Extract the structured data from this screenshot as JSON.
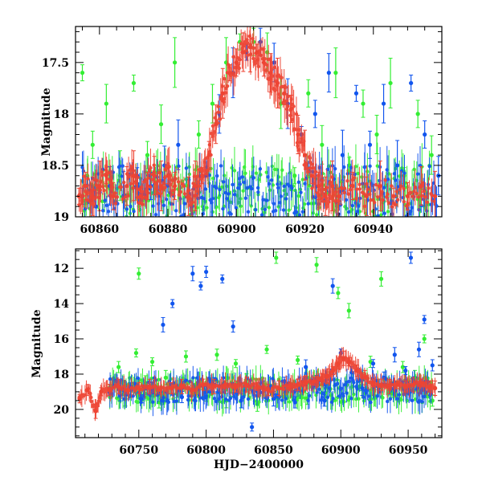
{
  "chart_data": [
    {
      "type": "scatter",
      "panel": "top",
      "title": "",
      "xlabel": "",
      "ylabel": "Magnitude",
      "xlim": [
        60853,
        60960
      ],
      "ylim": [
        19,
        17.15
      ],
      "y_inverted": true,
      "xticks": [
        60860,
        60880,
        60900,
        60920,
        60940
      ],
      "xtick_labels": [
        "60860",
        "60880",
        "60900",
        "60920",
        "60940"
      ],
      "yticks": [
        17.5,
        18,
        18.5,
        19
      ],
      "ytick_labels": [
        "17.5",
        "18",
        "18.5",
        "19"
      ],
      "series": [
        {
          "name": "green",
          "color": "#33ee33",
          "x": [
            60855,
            60858,
            60862,
            60866,
            60870,
            60874,
            60878,
            60882,
            60886,
            60889,
            60893,
            60897,
            60901,
            60905,
            60909,
            60913,
            60917,
            60921,
            60925,
            60929,
            60933,
            60937,
            60941,
            60945,
            60949,
            60953,
            60957
          ],
          "y": [
            17.6,
            18.3,
            17.9,
            18.6,
            17.7,
            18.4,
            18.1,
            17.5,
            18.7,
            18.2,
            17.9,
            17.5,
            17.3,
            17.3,
            17.4,
            17.9,
            18.6,
            17.8,
            18.3,
            17.6,
            18.5,
            17.9,
            18.2,
            17.7,
            18.6,
            18.0,
            18.4
          ]
        },
        {
          "name": "blue",
          "color": "#1155ee",
          "x": [
            60855,
            60859,
            60863,
            60867,
            60871,
            60875,
            60879,
            60883,
            60887,
            60891,
            60895,
            60899,
            60903,
            60907,
            60911,
            60915,
            60919,
            60923,
            60927,
            60931,
            60935,
            60939,
            60943,
            60947,
            60951,
            60955,
            60959
          ],
          "y": [
            18.8,
            18.9,
            18.7,
            18.8,
            18.6,
            18.7,
            18.5,
            18.3,
            18.9,
            18.6,
            18.0,
            17.6,
            17.4,
            17.3,
            17.5,
            17.9,
            18.2,
            18.0,
            17.6,
            18.4,
            17.8,
            18.3,
            17.9,
            18.5,
            17.7,
            18.2,
            18.6
          ]
        },
        {
          "name": "red",
          "color": "#ee4433",
          "x": [
            60854,
            60856,
            60858,
            60860,
            60862,
            60864,
            60868,
            60870,
            60872,
            60874,
            60876,
            60878,
            60880,
            60882,
            60886,
            60888,
            60890,
            60892,
            60894,
            60896,
            60898,
            60900,
            60902,
            60904,
            60906,
            60908,
            60910,
            60912,
            60914,
            60916,
            60918,
            60920,
            60922,
            60924,
            60926,
            60928,
            60930,
            60934,
            60938,
            60942,
            60946,
            60950,
            60954,
            60958
          ],
          "y": [
            18.8,
            18.7,
            18.8,
            18.7,
            18.6,
            18.8,
            18.7,
            18.6,
            18.8,
            18.7,
            18.6,
            18.7,
            18.6,
            18.7,
            18.8,
            18.7,
            18.6,
            18.4,
            18.1,
            17.8,
            17.6,
            17.5,
            17.4,
            17.35,
            17.4,
            17.5,
            17.6,
            17.7,
            17.8,
            17.95,
            18.2,
            18.4,
            18.6,
            18.7,
            18.8,
            18.7,
            18.8,
            18.7,
            18.8,
            18.7,
            18.8,
            18.8,
            18.7,
            18.8
          ]
        }
      ]
    },
    {
      "type": "scatter",
      "panel": "bottom",
      "title": "",
      "xlabel": "HJD−2400000",
      "ylabel": "Magnitude",
      "xlim": [
        60703,
        60975
      ],
      "ylim": [
        21.6,
        10.9
      ],
      "y_inverted": true,
      "xticks": [
        60750,
        60800,
        60850,
        60900,
        60950
      ],
      "xtick_labels": [
        "60750",
        "60800",
        "60850",
        "60900",
        "60950"
      ],
      "yticks": [
        12,
        14,
        16,
        18,
        20
      ],
      "ytick_labels": [
        "12",
        "14",
        "16",
        "18",
        "20"
      ],
      "series": [
        {
          "name": "green",
          "color": "#33ee33",
          "x": [
            60728,
            60735,
            60740,
            60748,
            60750,
            60755,
            60760,
            60765,
            60770,
            60778,
            60785,
            60792,
            60800,
            60808,
            60815,
            60822,
            60830,
            60838,
            60845,
            60852,
            60860,
            60868,
            60875,
            60882,
            60890,
            60898,
            60906,
            60914,
            60922,
            60930,
            60938,
            60946,
            60955,
            60962,
            60968
          ],
          "y": [
            18.8,
            17.6,
            19.4,
            16.8,
            12.3,
            18.5,
            17.3,
            19.6,
            18.2,
            19.1,
            17.0,
            18.6,
            19.3,
            16.9,
            19.5,
            17.4,
            18.3,
            19.7,
            16.6,
            11.4,
            18.9,
            17.2,
            19.4,
            11.8,
            18.1,
            13.4,
            14.4,
            18.7,
            17.3,
            12.6,
            19.1,
            17.6,
            18.2,
            16.0,
            19.5
          ]
        },
        {
          "name": "blue",
          "color": "#1155ee",
          "x": [
            60728,
            60736,
            60744,
            60752,
            60760,
            60768,
            60775,
            60782,
            60790,
            60796,
            60800,
            60806,
            60812,
            60820,
            60826,
            60834,
            60842,
            60850,
            60858,
            60866,
            60874,
            60882,
            60888,
            60894,
            60900,
            60908,
            60916,
            60924,
            60932,
            60940,
            60948,
            60952,
            60958,
            60962,
            60968
          ],
          "y": [
            19.0,
            19.2,
            18.9,
            19.4,
            18.8,
            15.2,
            14.0,
            19.3,
            12.3,
            13.0,
            12.2,
            18.6,
            12.6,
            15.3,
            19.5,
            21.0,
            18.7,
            19.4,
            18.4,
            19.6,
            17.6,
            18.3,
            19.5,
            13.0,
            16.8,
            17.9,
            18.8,
            17.4,
            18.2,
            16.9,
            17.8,
            11.4,
            16.6,
            14.9,
            17.5
          ]
        },
        {
          "name": "red",
          "color": "#ee4433",
          "x": [
            60706,
            60712,
            60718,
            60722,
            60728,
            60735,
            60742,
            60750,
            60758,
            60766,
            60774,
            60782,
            60790,
            60798,
            60806,
            60814,
            60822,
            60830,
            60838,
            60846,
            60854,
            60862,
            60868,
            60874,
            60880,
            60886,
            60890,
            60894,
            60898,
            60902,
            60906,
            60912,
            60918,
            60924,
            60930,
            60936,
            60942,
            60948,
            60954,
            60960,
            60966,
            60970
          ],
          "y": [
            19.4,
            18.9,
            20.1,
            19.0,
            18.9,
            18.7,
            18.9,
            18.8,
            18.7,
            18.9,
            18.8,
            18.7,
            18.9,
            18.6,
            18.7,
            18.6,
            18.7,
            18.6,
            18.7,
            18.9,
            18.8,
            18.7,
            18.6,
            18.5,
            18.4,
            18.3,
            18.1,
            17.8,
            17.4,
            17.1,
            17.3,
            17.8,
            18.2,
            18.5,
            18.6,
            18.7,
            18.6,
            18.7,
            18.6,
            18.5,
            18.7,
            18.8
          ]
        }
      ]
    }
  ]
}
